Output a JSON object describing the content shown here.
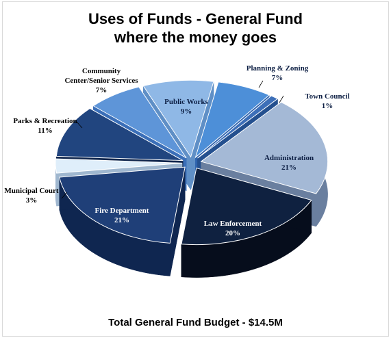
{
  "chart_data": {
    "type": "pie",
    "title": "Uses of Funds - General Fund",
    "subtitle": "where the money goes",
    "footer": "Total General Fund Budget - $14.5M",
    "categories": [
      "Public Works",
      "Planning & Zoning",
      "Town Council",
      "Administration",
      "Law Enforcement",
      "Fire Department",
      "Municipal Court",
      "Parks & Recreation",
      "Community Center/Senior Services"
    ],
    "values": [
      9,
      7,
      1,
      21,
      20,
      21,
      3,
      11,
      7
    ],
    "value_labels": [
      "9%",
      "7%",
      "1%",
      "21%",
      "20%",
      "21%",
      "3%",
      "11%",
      "7%"
    ],
    "colors": [
      "#8fb8e6",
      "#4d8fd8",
      "#3d6fb8",
      "#a4b9d6",
      "#0f2140",
      "#1f3f78",
      "#dfeefa",
      "#21457f",
      "#5e95d8"
    ],
    "side_colors": [
      "#5f8fc6",
      "#2f63ad",
      "#24508f",
      "#6a7f9f",
      "#060d1c",
      "#0f2650",
      "#9fb7cf",
      "#10264d",
      "#3b6fb8"
    ],
    "exploded": true,
    "view": "3d"
  }
}
